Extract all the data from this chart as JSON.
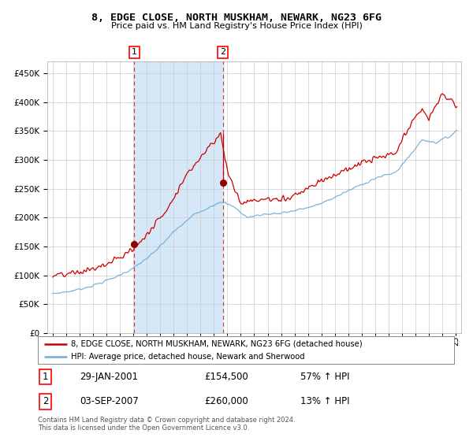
{
  "title": "8, EDGE CLOSE, NORTH MUSKHAM, NEWARK, NG23 6FG",
  "subtitle": "Price paid vs. HM Land Registry's House Price Index (HPI)",
  "legend_line1": "8, EDGE CLOSE, NORTH MUSKHAM, NEWARK, NG23 6FG (detached house)",
  "legend_line2": "HPI: Average price, detached house, Newark and Sherwood",
  "transaction1_date": "29-JAN-2001",
  "transaction1_price": "£154,500",
  "transaction1_hpi": "57% ↑ HPI",
  "transaction1_date_num": 2001.08,
  "transaction1_price_val": 154500,
  "transaction2_date": "03-SEP-2007",
  "transaction2_price": "£260,000",
  "transaction2_hpi": "13% ↑ HPI",
  "transaction2_date_num": 2007.67,
  "transaction2_price_val": 260000,
  "hpi_line_color": "#6baed6",
  "price_line_color": "#cc0000",
  "marker_color": "#900000",
  "dashed_line_color": "#cc4444",
  "shade_color": "#d6e8f7",
  "grid_color": "#cccccc",
  "background_color": "#ffffff",
  "ylim_min": 0,
  "ylim_max": 470000,
  "footer": "Contains HM Land Registry data © Crown copyright and database right 2024.\nThis data is licensed under the Open Government Licence v3.0."
}
